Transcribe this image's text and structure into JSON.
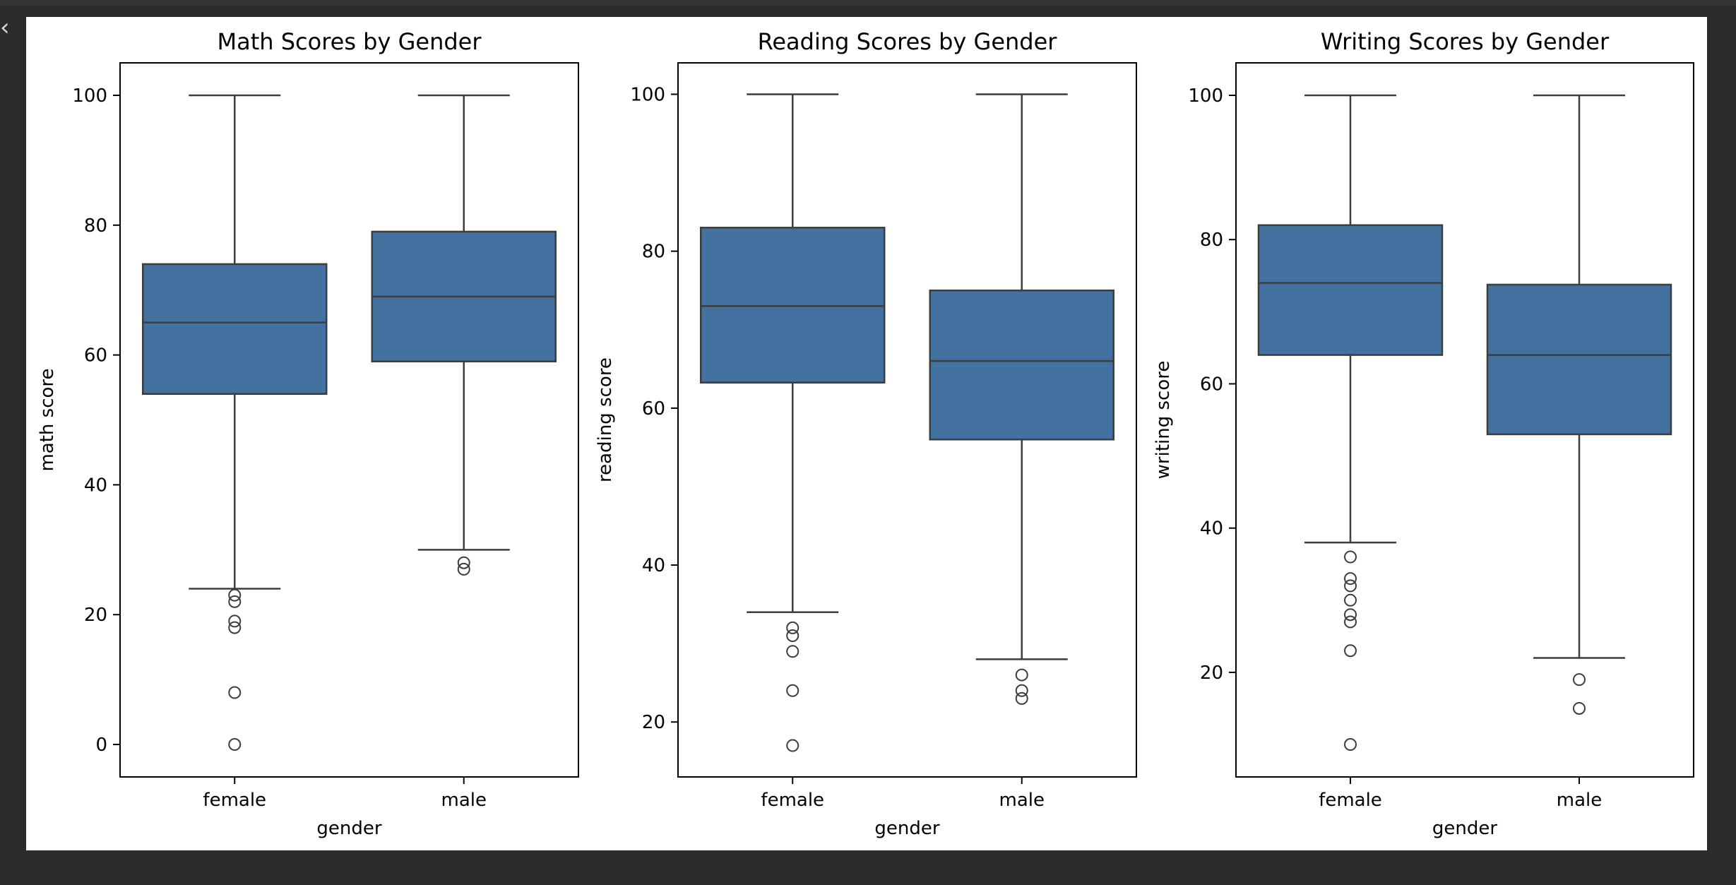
{
  "page": {
    "corner_glyph": "‹"
  },
  "colors": {
    "box_fill": "#4372a0",
    "line": "#3d3d3d",
    "figure_bg": "#ffffff",
    "page_bg": "#2b2b2b"
  },
  "chart_data": [
    {
      "type": "box",
      "title": "Math Scores by Gender",
      "xlabel": "gender",
      "ylabel": "math score",
      "categories": [
        "female",
        "male"
      ],
      "ylim": [
        -5,
        105
      ],
      "yticks": [
        0,
        20,
        40,
        60,
        80,
        100
      ],
      "boxes": [
        {
          "category": "female",
          "whisker_low": 24,
          "q1": 54,
          "median": 65,
          "q3": 74,
          "whisker_high": 100,
          "outliers": [
            23,
            22,
            19,
            18,
            8,
            0
          ]
        },
        {
          "category": "male",
          "whisker_low": 30,
          "q1": 59,
          "median": 69,
          "q3": 79,
          "whisker_high": 100,
          "outliers": [
            28,
            27
          ]
        }
      ]
    },
    {
      "type": "box",
      "title": "Reading Scores by Gender",
      "xlabel": "gender",
      "ylabel": "reading score",
      "categories": [
        "female",
        "male"
      ],
      "ylim": [
        13,
        104
      ],
      "yticks": [
        20,
        40,
        60,
        80,
        100
      ],
      "boxes": [
        {
          "category": "female",
          "whisker_low": 34,
          "q1": 63.25,
          "median": 73,
          "q3": 83,
          "whisker_high": 100,
          "outliers": [
            32,
            31,
            29,
            24,
            17
          ]
        },
        {
          "category": "male",
          "whisker_low": 28,
          "q1": 56,
          "median": 66,
          "q3": 75,
          "whisker_high": 100,
          "outliers": [
            26,
            24,
            23
          ]
        }
      ]
    },
    {
      "type": "box",
      "title": "Writing Scores by Gender",
      "xlabel": "gender",
      "ylabel": "writing score",
      "categories": [
        "female",
        "male"
      ],
      "ylim": [
        5.5,
        104.5
      ],
      "yticks": [
        20,
        40,
        60,
        80,
        100
      ],
      "boxes": [
        {
          "category": "female",
          "whisker_low": 38,
          "q1": 64,
          "median": 74,
          "q3": 82,
          "whisker_high": 100,
          "outliers": [
            36,
            33,
            32,
            30,
            28,
            27,
            23,
            10
          ]
        },
        {
          "category": "male",
          "whisker_low": 22,
          "q1": 53,
          "median": 64,
          "q3": 73.75,
          "whisker_high": 100,
          "outliers": [
            19,
            15
          ]
        }
      ]
    }
  ]
}
